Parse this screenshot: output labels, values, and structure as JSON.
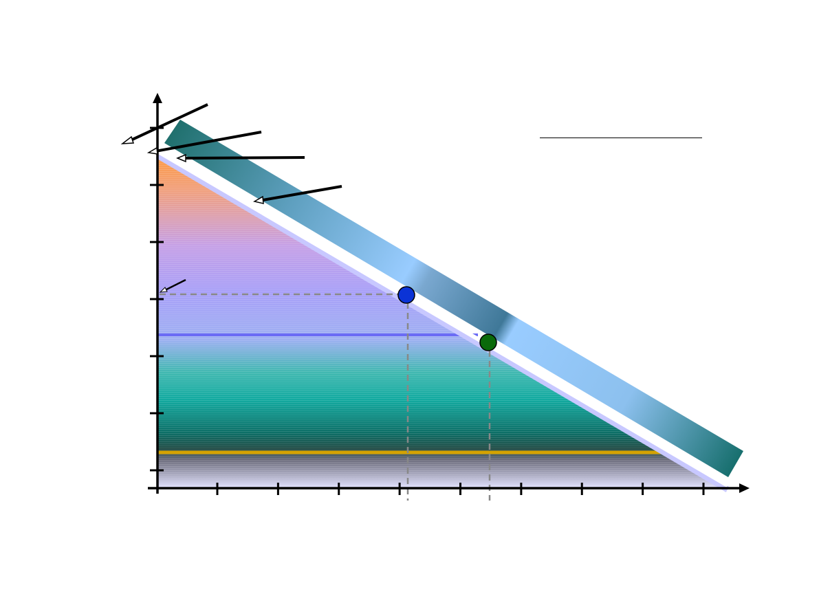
{
  "diagram": {
    "type": "budget-line-diagram",
    "legend_title": "",
    "x_axis": {
      "label": "",
      "tick_count": 9
    },
    "y_axis": {
      "label": "",
      "tick_count": 6
    },
    "points": [
      {
        "name": "point-a",
        "color": "#0b33d6"
      },
      {
        "name": "point-b",
        "color": "#0a6a0a"
      }
    ],
    "colors": {
      "region_top": "#ff9a3c",
      "region_middle": "#a8a0f8",
      "region_teal": "#12aaa0",
      "region_dark": "#0d5e55",
      "region_bottom": "#dcdcf8",
      "gold_band": "#d4a300",
      "purple_band": "#6b6bf5",
      "budget_line": "#ffffff",
      "budget_line_edge": "#c8c8ff",
      "shifted_band_light": "#99ccff",
      "shifted_band_dark": "#1a6e6a",
      "guide_lines": "#888888",
      "axes": "#000000"
    }
  }
}
